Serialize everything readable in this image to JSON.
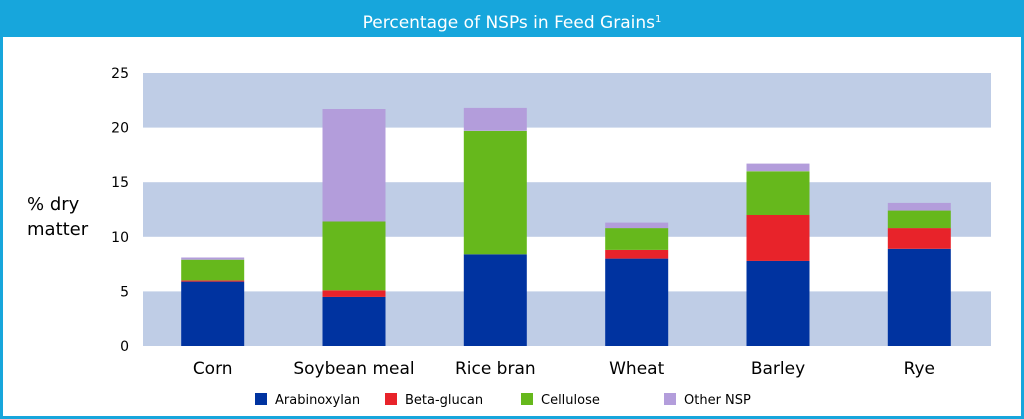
{
  "chart_data": {
    "type": "bar",
    "stacked": true,
    "title": "Percentage of NSPs in Feed Grains",
    "title_footnote": "1",
    "xlabel": "",
    "ylabel_lines": [
      "% dry",
      "matter"
    ],
    "ylim": [
      0,
      25
    ],
    "yticks": [
      0,
      5,
      10,
      15,
      20,
      25
    ],
    "grid_bands": true,
    "legend_position": "bottom",
    "categories": [
      "Corn",
      "Soybean meal",
      "Rice bran",
      "Wheat",
      "Barley",
      "Rye"
    ],
    "series": [
      {
        "name": "Arabinoxylan",
        "color": "#0033a0",
        "values": [
          5.9,
          4.5,
          8.4,
          8.0,
          7.8,
          8.9
        ]
      },
      {
        "name": "Beta-glucan",
        "color": "#e8232a",
        "values": [
          0.1,
          0.6,
          0.0,
          0.8,
          4.2,
          1.9
        ]
      },
      {
        "name": "Cellulose",
        "color": "#66b81c",
        "values": [
          1.9,
          6.3,
          11.3,
          2.0,
          4.0,
          1.6
        ]
      },
      {
        "name": "Other NSP",
        "color": "#b39ddb",
        "values": [
          0.2,
          10.3,
          2.1,
          0.5,
          0.7,
          0.7
        ]
      }
    ],
    "colors": {
      "band": "#bfcde6",
      "title_bar": "#17a6dc",
      "border": "#17a6dc"
    }
  }
}
